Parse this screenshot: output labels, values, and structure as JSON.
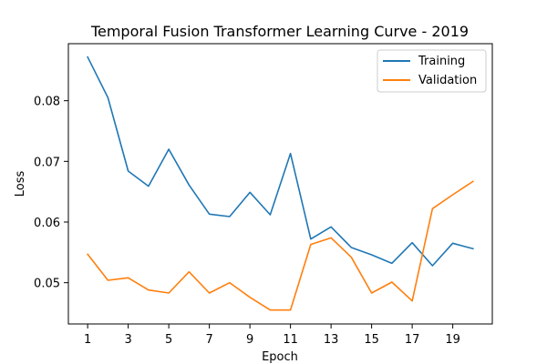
{
  "chart_data": {
    "type": "line",
    "title": "Temporal Fusion Transformer Learning Curve - 2019",
    "xlabel": "Epoch",
    "ylabel": "Loss",
    "x": [
      1,
      2,
      3,
      4,
      5,
      6,
      7,
      8,
      9,
      10,
      11,
      12,
      13,
      14,
      15,
      16,
      17,
      18,
      19,
      20
    ],
    "xticks": [
      1,
      3,
      5,
      7,
      9,
      11,
      13,
      15,
      17,
      19
    ],
    "yticks": [
      0.05,
      0.06,
      0.07,
      0.08
    ],
    "ytick_labels": [
      "0.05",
      "0.06",
      "0.07",
      "0.08"
    ],
    "xlim": [
      0.05,
      20.95
    ],
    "ylim": [
      0.0432,
      0.0894
    ],
    "grid": false,
    "legend_position": "upper right",
    "series": [
      {
        "name": "Training",
        "color": "#1f77b4",
        "values": [
          0.0872,
          0.0805,
          0.0684,
          0.0659,
          0.072,
          0.0661,
          0.0613,
          0.0609,
          0.0649,
          0.0612,
          0.0713,
          0.0572,
          0.0592,
          0.0558,
          0.0546,
          0.0532,
          0.0566,
          0.0528,
          0.0565,
          0.0556
        ]
      },
      {
        "name": "Validation",
        "color": "#ff7f0e",
        "values": [
          0.0547,
          0.0504,
          0.0508,
          0.0488,
          0.0483,
          0.0518,
          0.0483,
          0.05,
          0.0476,
          0.0455,
          0.0455,
          0.0563,
          0.0574,
          0.0542,
          0.0483,
          0.0501,
          0.047,
          0.0622,
          0.0645,
          0.0667
        ]
      }
    ]
  }
}
